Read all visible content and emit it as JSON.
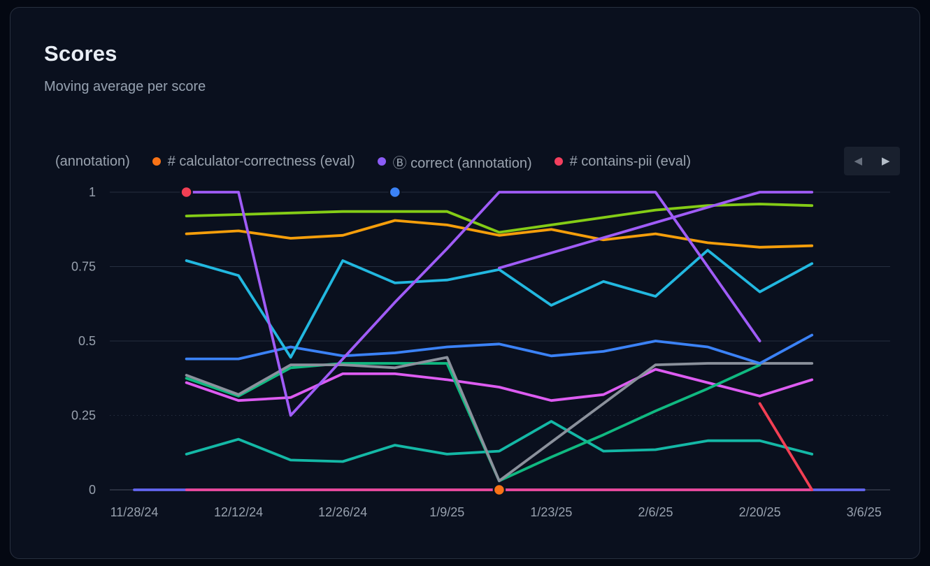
{
  "card": {
    "title": "Scores",
    "subtitle": "Moving average per score"
  },
  "legend": {
    "items": [
      {
        "label": "(annotation)",
        "color": null
      },
      {
        "label": "# calculator-correctness (eval)",
        "color": "#f97316"
      },
      {
        "label": "Ⓑ correct (annotation)",
        "color": "#8b5cf6"
      },
      {
        "label": "# contains-pii (eval)",
        "color": "#f43f5e"
      }
    ],
    "icons": {
      "prev": "◀",
      "next": "▶"
    }
  },
  "ui_colors": {
    "page_background": "#040812",
    "card_background": "#0a101e",
    "card_border": "#28303f",
    "grid_line": "#262e3f",
    "zero_axis": "#4a5160",
    "axis_text": "#98a1ae",
    "legend_text": "#9aa3af",
    "title_text": "#e8edf4",
    "subtitle_text": "#96a1b0"
  },
  "chart_data": {
    "type": "line",
    "title": "Scores",
    "subtitle": "Moving average per score",
    "ylim": [
      0,
      1
    ],
    "grid": "horizontal",
    "legend_position": "top",
    "x": [
      "11/28/24",
      "12/5/24",
      "12/12/24",
      "12/19/24",
      "12/26/24",
      "1/2/25",
      "1/9/25",
      "1/16/25",
      "1/23/25",
      "1/30/25",
      "2/6/25",
      "2/13/25",
      "2/20/25",
      "2/27/25",
      "3/6/25"
    ],
    "x_tick_labels": [
      "11/28/24",
      "12/12/24",
      "12/26/24",
      "1/9/25",
      "1/23/25",
      "2/6/25",
      "2/20/25",
      "3/6/25"
    ],
    "x_tick_indices": [
      0,
      2,
      4,
      6,
      8,
      10,
      12,
      14
    ],
    "y_ticks": [
      0,
      0.25,
      0.5,
      0.75,
      1
    ],
    "y_tick_labels": [
      "0",
      "0.25",
      "0.5",
      "0.75",
      "1"
    ],
    "series": [
      {
        "id": "indigo-zero-line",
        "legend_label": null,
        "color": "#6366f1",
        "values": [
          0,
          0,
          0,
          0,
          0,
          0,
          0,
          0,
          0,
          0,
          0,
          0,
          0,
          0,
          0
        ]
      },
      {
        "id": "pink-zero-line",
        "legend_label": null,
        "color": "#ec4899",
        "values": [
          null,
          0,
          0,
          0,
          0,
          0,
          0,
          0,
          0,
          0,
          0,
          0,
          0,
          0,
          null
        ]
      },
      {
        "id": "teal-line",
        "legend_label": null,
        "color": "#14b8a6",
        "values": [
          null,
          0.12,
          0.17,
          0.1,
          0.095,
          0.15,
          0.12,
          0.13,
          0.23,
          0.13,
          0.135,
          0.165,
          0.165,
          0.12,
          null
        ]
      },
      {
        "id": "magenta-line",
        "legend_label": null,
        "color": "#dd5cf1",
        "values": [
          null,
          0.36,
          0.3,
          0.31,
          0.39,
          0.39,
          0.37,
          0.345,
          0.3,
          0.32,
          0.405,
          0.36,
          0.315,
          0.37,
          null
        ]
      },
      {
        "id": "emerald-line",
        "legend_label": null,
        "color": "#10b981",
        "values": [
          null,
          0.375,
          0.315,
          0.41,
          0.425,
          0.425,
          0.425,
          0.03,
          0.11,
          0.185,
          0.265,
          0.34,
          0.42,
          null,
          null
        ]
      },
      {
        "id": "gray-line",
        "legend_label": null,
        "color": "#8b919c",
        "values": [
          null,
          0.385,
          0.32,
          0.42,
          0.42,
          0.41,
          0.445,
          0.03,
          0.16,
          0.29,
          0.42,
          0.425,
          0.425,
          0.425,
          null
        ]
      },
      {
        "id": "blue-line",
        "legend_label": null,
        "color": "#3b82f6",
        "values": [
          null,
          0.44,
          0.44,
          0.48,
          0.45,
          0.46,
          0.48,
          0.49,
          0.45,
          0.465,
          0.5,
          0.48,
          0.425,
          0.52,
          null
        ]
      },
      {
        "id": "cyan-line",
        "legend_label": null,
        "color": "#22b8e0",
        "values": [
          null,
          0.77,
          0.72,
          0.445,
          0.77,
          0.695,
          0.705,
          0.74,
          0.62,
          0.7,
          0.65,
          0.805,
          0.665,
          0.76,
          null
        ]
      },
      {
        "id": "amber-line",
        "legend_label": "# calculator-correctness (eval)",
        "color": "#f59e0b",
        "values": [
          null,
          0.86,
          0.87,
          0.845,
          0.855,
          0.905,
          0.89,
          0.855,
          0.875,
          0.84,
          0.86,
          0.83,
          0.815,
          0.82,
          null
        ]
      },
      {
        "id": "lime-line",
        "legend_label": null,
        "color": "#84cc16",
        "values": [
          null,
          0.92,
          0.925,
          0.93,
          0.935,
          0.935,
          0.935,
          0.865,
          0.89,
          0.915,
          0.94,
          0.955,
          0.96,
          0.955,
          null
        ]
      },
      {
        "id": "red-line",
        "legend_label": "# contains-pii (eval)",
        "color": "#f23f54",
        "values": [
          null,
          1,
          null,
          null,
          null,
          null,
          null,
          null,
          null,
          null,
          null,
          null,
          0.29,
          0,
          null
        ]
      },
      {
        "id": "purple-line-a",
        "legend_label": "Ⓑ correct (annotation)",
        "color": "#a05cf7",
        "values": [
          null,
          1,
          1,
          0.25,
          0.44,
          0.63,
          0.81,
          1,
          1,
          1,
          1,
          0.75,
          0.5,
          null,
          null
        ]
      },
      {
        "id": "purple-line-b",
        "legend_label": null,
        "color": "#a05cf7",
        "values": [
          null,
          null,
          null,
          null,
          null,
          null,
          null,
          0.745,
          0.796,
          0.847,
          0.898,
          0.949,
          1,
          1,
          null
        ]
      },
      {
        "id": "blue-marker",
        "legend_label": null,
        "color": "#3b82f6",
        "values": [
          null,
          null,
          null,
          null,
          null,
          1,
          null,
          null,
          null,
          null,
          null,
          null,
          null,
          null,
          null
        ]
      },
      {
        "id": "orange-marker",
        "legend_label": null,
        "color": "#f97316",
        "values": [
          null,
          null,
          null,
          null,
          null,
          null,
          null,
          0,
          null,
          null,
          null,
          null,
          null,
          null,
          null
        ]
      }
    ]
  }
}
